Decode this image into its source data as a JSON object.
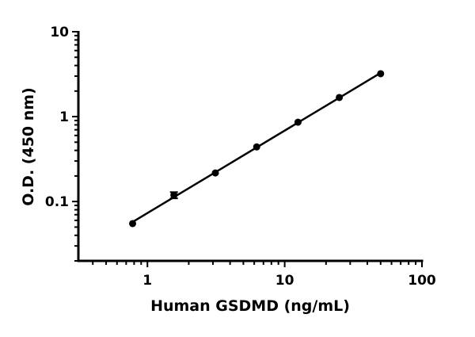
{
  "chart_data": {
    "type": "scatter",
    "title": "",
    "xlabel": "Human GSDMD (ng/mL)",
    "ylabel": "O.D. (450 nm)",
    "xscale": "log",
    "yscale": "log",
    "xlim": [
      0.314,
      100
    ],
    "ylim": [
      0.02,
      10
    ],
    "x_ticks": [
      {
        "value": 1,
        "label": "1"
      },
      {
        "value": 10,
        "label": "10"
      },
      {
        "value": 100,
        "label": "100"
      }
    ],
    "y_ticks": [
      {
        "value": 0.1,
        "label": "0.1"
      },
      {
        "value": 1,
        "label": "1"
      },
      {
        "value": 10,
        "label": "10"
      }
    ],
    "grid": false,
    "fit_line": true,
    "color": "#000000",
    "points": [
      {
        "x": 0.78,
        "y": 0.055
      },
      {
        "x": 1.56,
        "y": 0.119,
        "error": 0.01
      },
      {
        "x": 3.125,
        "y": 0.217
      },
      {
        "x": 6.25,
        "y": 0.44
      },
      {
        "x": 12.5,
        "y": 0.86
      },
      {
        "x": 25,
        "y": 1.68
      },
      {
        "x": 50,
        "y": 3.2
      }
    ]
  }
}
